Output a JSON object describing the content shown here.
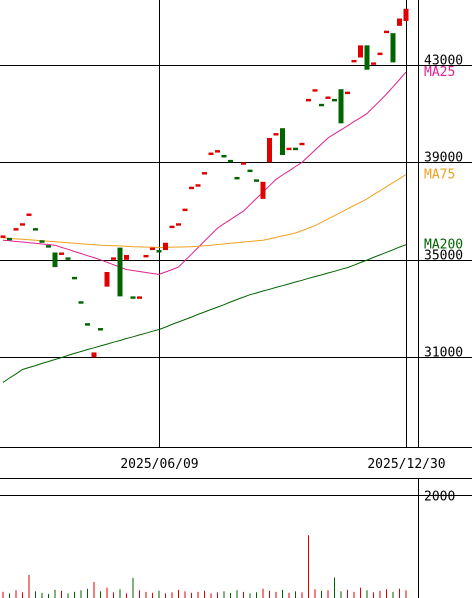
{
  "chart_data": {
    "type": "candlestick",
    "categories": [
      null,
      null,
      null,
      null,
      null,
      null,
      null,
      null,
      null,
      null,
      null,
      null,
      null,
      null,
      null,
      null,
      null,
      null,
      null,
      null,
      null,
      null,
      null,
      null,
      "2025/06/09",
      null,
      null,
      null,
      null,
      null,
      null,
      null,
      null,
      null,
      null,
      null,
      null,
      null,
      null,
      null,
      null,
      null,
      null,
      null,
      null,
      null,
      null,
      null,
      null,
      null,
      null,
      null,
      null,
      null,
      null,
      null,
      null,
      null,
      null,
      null,
      null,
      null,
      "2025/12/30"
    ],
    "open": [
      35900,
      35900,
      36200,
      36400,
      36800,
      36300,
      35800,
      35600,
      35300,
      35200,
      35100,
      34300,
      33300,
      32400,
      31000,
      32200,
      33900,
      35000,
      35500,
      35000,
      33500,
      33400,
      35100,
      35400,
      35400,
      35400,
      36300,
      36400,
      37000,
      37900,
      38000,
      38500,
      39300,
      39400,
      39300,
      39100,
      38400,
      38900,
      38700,
      38300,
      37500,
      39000,
      40100,
      40400,
      39500,
      39600,
      39700,
      41500,
      41900,
      41400,
      41600,
      41600,
      42000,
      41800,
      43100,
      43300,
      43800,
      43000,
      43400,
      44300,
      44300,
      44600,
      44800
    ],
    "close": [
      36000,
      35800,
      36300,
      36500,
      36900,
      36200,
      35700,
      35500,
      34700,
      35300,
      35000,
      34200,
      33200,
      32300,
      31200,
      32100,
      34500,
      35100,
      33500,
      35200,
      33400,
      33500,
      35200,
      35500,
      35300,
      35700,
      36400,
      36500,
      37100,
      38000,
      38100,
      38600,
      39400,
      39500,
      39200,
      39000,
      38300,
      39000,
      38600,
      38200,
      38200,
      40000,
      40200,
      39300,
      39600,
      39500,
      39800,
      41600,
      42000,
      41300,
      41700,
      41500,
      40600,
      41900,
      43200,
      43800,
      42800,
      43100,
      43500,
      44400,
      43100,
      44900,
      45300
    ],
    "up_color": "#e00000",
    "down_color": "#006400",
    "series": [
      {
        "name": "MA25",
        "color": "#e0208f",
        "values": [
          35800,
          35780,
          35750,
          35730,
          35700,
          35680,
          35650,
          35630,
          35600,
          35510,
          35430,
          35340,
          35260,
          35170,
          35090,
          35000,
          34900,
          34800,
          34700,
          34600,
          34560,
          34520,
          34480,
          34440,
          34400,
          34500,
          34600,
          34700,
          34970,
          35230,
          35500,
          35770,
          36030,
          36300,
          36480,
          36650,
          36830,
          37000,
          37260,
          37520,
          37780,
          38040,
          38300,
          38480,
          38650,
          38830,
          39000,
          39250,
          39500,
          39750,
          40000,
          40170,
          40330,
          40500,
          40670,
          40830,
          41000,
          41270,
          41530,
          41800,
          42100,
          42400,
          42700
        ]
      },
      {
        "name": "MA75",
        "color": "#f0a020",
        "values": [
          35900,
          35880,
          35860,
          35840,
          35820,
          35800,
          35780,
          35760,
          35740,
          35720,
          35700,
          35680,
          35660,
          35640,
          35620,
          35600,
          35590,
          35580,
          35570,
          35560,
          35540,
          35530,
          35520,
          35520,
          35500,
          35510,
          35520,
          35520,
          35530,
          35540,
          35550,
          35580,
          35600,
          35630,
          35650,
          35680,
          35700,
          35730,
          35750,
          35780,
          35800,
          35860,
          35920,
          35980,
          36040,
          36100,
          36200,
          36300,
          36400,
          36540,
          36680,
          36810,
          36950,
          37090,
          37230,
          37360,
          37500,
          37670,
          37830,
          38000,
          38170,
          38330,
          38500
        ]
      },
      {
        "name": "MA200",
        "color": "#006400",
        "values": [
          29970,
          30150,
          30320,
          30500,
          30580,
          30660,
          30750,
          30830,
          30910,
          30990,
          31080,
          31160,
          31240,
          31320,
          31390,
          31470,
          31540,
          31620,
          31690,
          31770,
          31840,
          31920,
          31990,
          32070,
          32140,
          32240,
          32350,
          32450,
          32550,
          32650,
          32760,
          32860,
          32960,
          33060,
          33160,
          33270,
          33370,
          33470,
          33570,
          33640,
          33720,
          33790,
          33870,
          33940,
          34010,
          34090,
          34160,
          34240,
          34310,
          34380,
          34460,
          34530,
          34610,
          34680,
          34780,
          34890,
          34990,
          35100,
          35200,
          35310,
          35410,
          35520,
          35620
        ]
      }
    ],
    "ylim": [
      27320,
      45660
    ],
    "yticks": [
      31000,
      35000,
      39000,
      43000
    ],
    "grid": true,
    "volume": {
      "values": [
        120,
        90,
        150,
        110,
        450,
        130,
        100,
        80,
        160,
        140,
        90,
        120,
        150,
        180,
        310,
        130,
        200,
        110,
        170,
        90,
        390,
        150,
        120,
        100,
        140,
        90,
        110,
        160,
        130,
        100,
        120,
        140,
        90,
        110,
        130,
        100,
        150,
        120,
        90,
        110,
        180,
        140,
        120,
        160,
        100,
        130,
        110,
        1220,
        170,
        140,
        150,
        400,
        130,
        160,
        120,
        200,
        150,
        110,
        140,
        170,
        120,
        180,
        150
      ],
      "ylim": [
        0,
        2330
      ],
      "yticks": [
        2000
      ]
    }
  }
}
